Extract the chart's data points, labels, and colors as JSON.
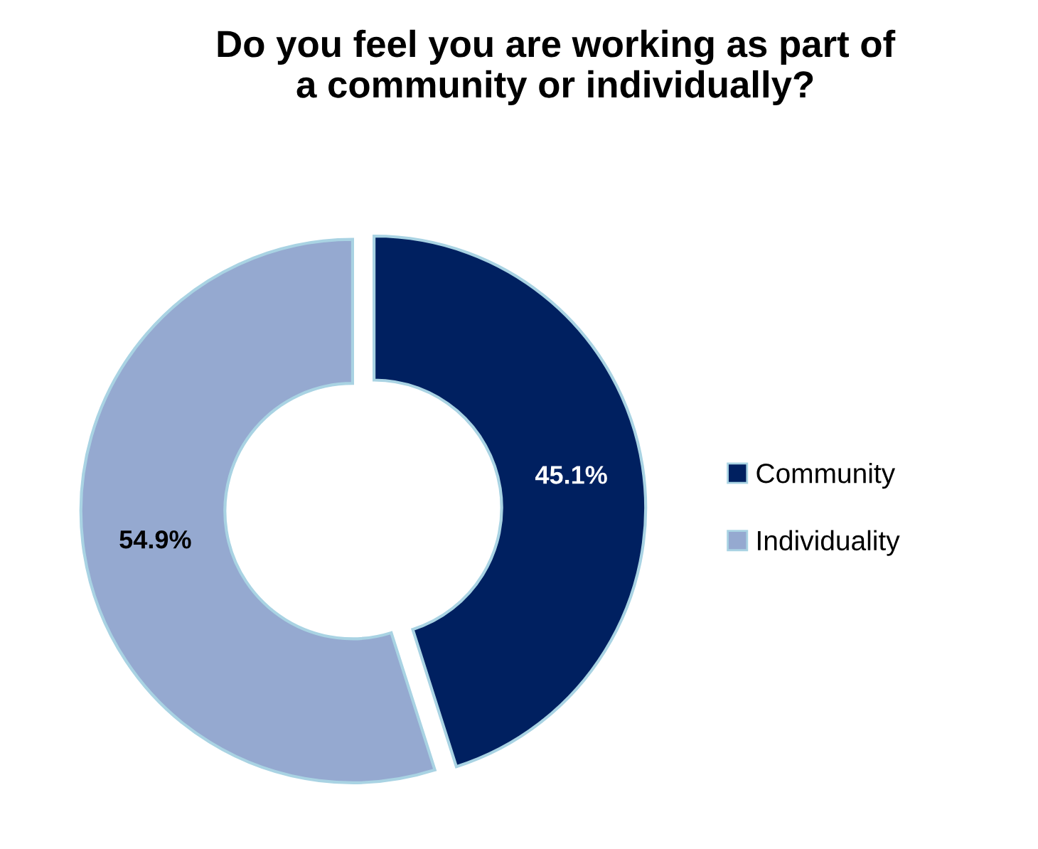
{
  "chart_data": {
    "type": "donut",
    "title": "Do you feel you are working as part of\na community or individually?",
    "categories": [
      "Community",
      "Individuality"
    ],
    "values": [
      45.1,
      54.9
    ],
    "colors": [
      "#002060",
      "#95a9d0"
    ],
    "value_labels": [
      "45.1%",
      "54.9%"
    ],
    "legend": "right"
  }
}
